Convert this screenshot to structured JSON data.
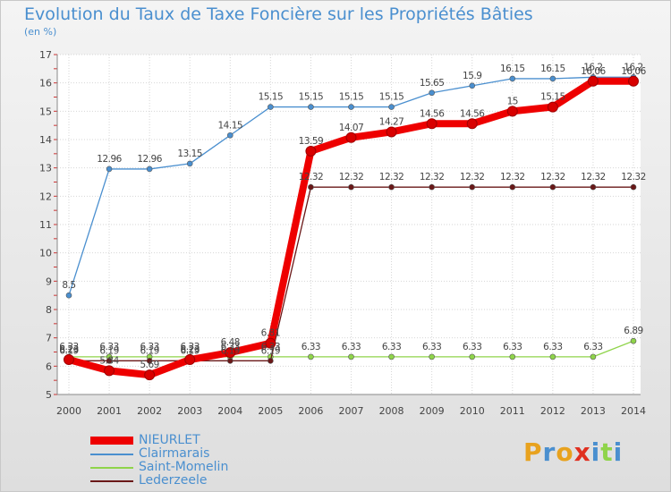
{
  "chart_data": {
    "type": "line",
    "title": "Evolution du Taux de Taxe Foncière sur les Propriétés Bâties",
    "ylabel": "(en %)",
    "xlabel": "",
    "categories": [
      "2000",
      "2001",
      "2002",
      "2003",
      "2004",
      "2005",
      "2006",
      "2007",
      "2008",
      "2009",
      "2010",
      "2011",
      "2012",
      "2013",
      "2014"
    ],
    "ylim": [
      5,
      17
    ],
    "yticks": [
      5,
      6,
      7,
      8,
      9,
      10,
      11,
      12,
      13,
      14,
      15,
      16,
      17
    ],
    "grid": true,
    "series": [
      {
        "name": "NIEURLET",
        "color": "#ee0000",
        "values": [
          6.23,
          5.84,
          5.69,
          6.23,
          6.48,
          6.81,
          13.59,
          14.07,
          14.27,
          14.56,
          14.56,
          15,
          15.15,
          16.06,
          16.06
        ],
        "labels": [
          "6.23",
          "5.84",
          "5.69",
          "6.23",
          "6.48",
          "6.81",
          "13.59",
          "14.07",
          "14.27",
          "14.56",
          "14.56",
          "15",
          "15.15",
          "16.06",
          "16.06"
        ]
      },
      {
        "name": "Clairmarais",
        "color": "#4a8fcf",
        "values": [
          8.5,
          12.96,
          12.96,
          13.15,
          14.15,
          15.15,
          15.15,
          15.15,
          15.15,
          15.65,
          15.9,
          16.15,
          16.15,
          16.2,
          16.2
        ],
        "labels": [
          "8.5",
          "12.96",
          "12.96",
          "13.15",
          "14.15",
          "15.15",
          "15.15",
          "15.15",
          "15.15",
          "15.65",
          "15.9",
          "16.15",
          "16.15",
          "16.2",
          "16.2"
        ]
      },
      {
        "name": "Saint-Momelin",
        "color": "#8fd44a",
        "values": [
          6.33,
          6.33,
          6.33,
          6.33,
          6.33,
          6.33,
          6.33,
          6.33,
          6.33,
          6.33,
          6.33,
          6.33,
          6.33,
          6.33,
          6.89
        ],
        "labels": [
          "6.33",
          "6.33",
          "6.33",
          "6.33",
          "6.33",
          "6.33",
          "6.33",
          "6.33",
          "6.33",
          "6.33",
          "6.33",
          "6.33",
          "6.33",
          "6.33",
          "6.89"
        ]
      },
      {
        "name": "Lederzeele",
        "color": "#6a1818",
        "values": [
          6.19,
          6.19,
          6.19,
          6.19,
          6.19,
          6.19,
          12.32,
          12.32,
          12.32,
          12.32,
          12.32,
          12.32,
          12.32,
          12.32,
          12.32
        ],
        "labels": [
          "6.19",
          "6.19",
          "6.19",
          "6.19",
          "6.19",
          "6.19",
          "12.32",
          "12.32",
          "12.32",
          "12.32",
          "12.32",
          "12.32",
          "12.32",
          "12.32",
          "12.32"
        ]
      }
    ]
  },
  "legend": {
    "items": [
      {
        "label": "NIEURLET",
        "color": "#ee0000"
      },
      {
        "label": "Clairmarais",
        "color": "#4a8fcf"
      },
      {
        "label": "Saint-Momelin",
        "color": "#8fd44a"
      },
      {
        "label": "Lederzeele",
        "color": "#6a1818"
      }
    ]
  },
  "logo": {
    "text": "Proxiti",
    "letter_colors": [
      "#e8a21e",
      "#4a8fcf",
      "#e8a21e",
      "#e03020",
      "#4a8fcf",
      "#8fd44a",
      "#4a8fcf"
    ]
  }
}
